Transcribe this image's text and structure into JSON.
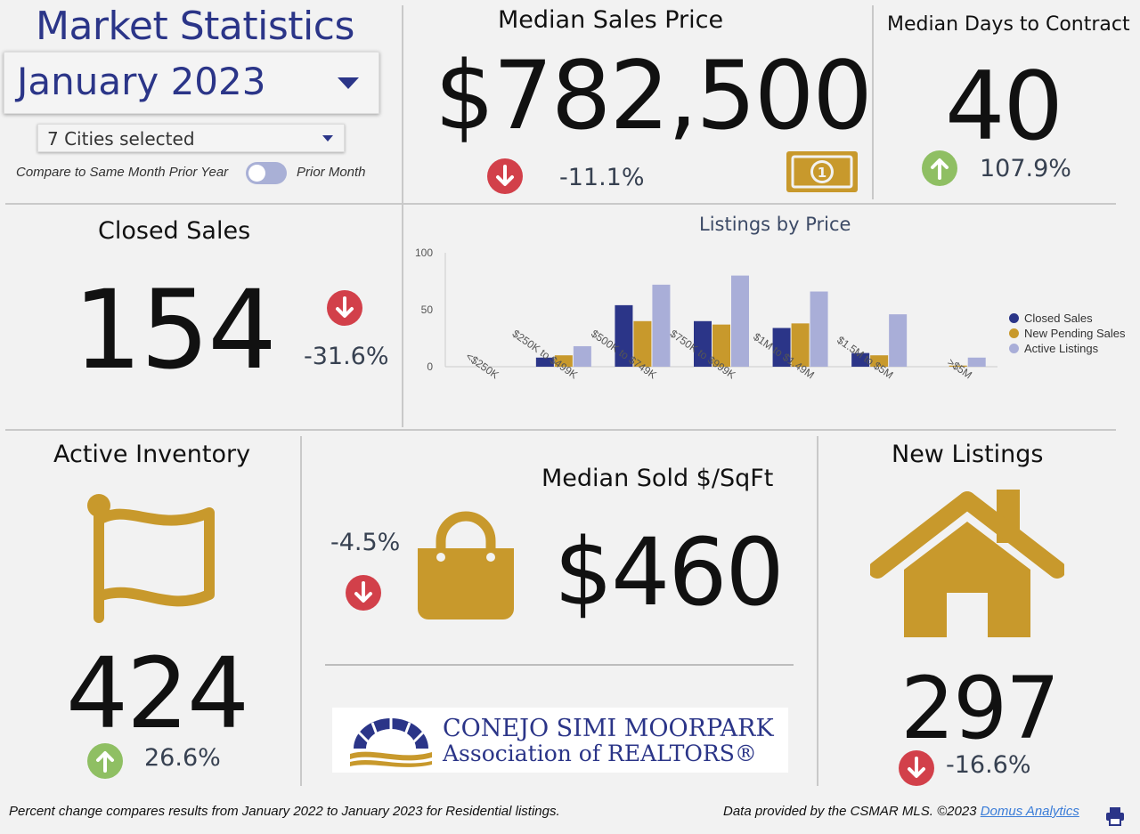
{
  "header": {
    "title": "Market Statistics",
    "month_selected": "January 2023",
    "cities_selected": "7 Cities selected",
    "compare_left_label": "Compare to Same Month Prior Year",
    "compare_right_label": "Prior Month"
  },
  "median_sales_price": {
    "title": "Median Sales Price",
    "value": "$782,500",
    "change": "-11.1%",
    "direction": "down"
  },
  "median_days": {
    "title": "Median Days to Contract",
    "value": "40",
    "change": "107.9%",
    "direction": "up"
  },
  "closed_sales": {
    "title": "Closed Sales",
    "value": "154",
    "change": "-31.6%",
    "direction": "down"
  },
  "active_inventory": {
    "title": "Active Inventory",
    "value": "424",
    "change": "26.6%",
    "direction": "up"
  },
  "median_sqft": {
    "title": "Median Sold $/SqFt",
    "value": "$460",
    "change": "-4.5%",
    "direction": "down"
  },
  "new_listings": {
    "title": "New Listings",
    "value": "297",
    "change": "-16.6%",
    "direction": "down"
  },
  "logo": {
    "line1": "CONEJO SIMI MOORPARK",
    "line2": "Association of REALTORS®"
  },
  "footer": {
    "left": "Percent change compares results from January 2022 to January 2023 for Residential listings.",
    "right_prefix": "Data provided by the CSMAR MLS. ©2023",
    "right_link": "Domus Analytics"
  },
  "icons": {
    "print": "printer-icon",
    "money": "money-bill-icon",
    "flag": "flag-icon",
    "bag": "shopping-bag-icon",
    "house": "house-icon"
  },
  "colors": {
    "navy": "#2b3588",
    "gold": "#c8992c",
    "lavender": "#a9aed8",
    "red": "#d2404a",
    "green": "#8fbf63"
  },
  "chart_data": {
    "type": "bar",
    "title": "Listings by Price",
    "categories": [
      "<$250K",
      "$250K to $499K",
      "$500K to $749K",
      "$750K to $999K",
      "$1M to $1.49M",
      "$1.5M to $5M",
      ">$5M"
    ],
    "series": [
      {
        "name": "Closed Sales",
        "values": [
          0,
          8,
          54,
          40,
          34,
          12,
          0
        ]
      },
      {
        "name": "New Pending Sales",
        "values": [
          0,
          10,
          40,
          37,
          38,
          10,
          1
        ]
      },
      {
        "name": "Active Listings",
        "values": [
          0,
          18,
          72,
          80,
          66,
          46,
          8
        ]
      }
    ],
    "ylim": [
      0,
      100
    ],
    "yticks": [
      0,
      50,
      100
    ],
    "legend": "right"
  }
}
